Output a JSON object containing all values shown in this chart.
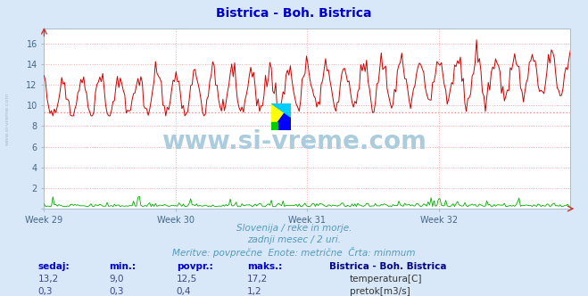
{
  "title": "Bistrica - Boh. Bistrica",
  "title_color": "#0000cc",
  "bg_color": "#d8e8f8",
  "plot_bg_color": "#ffffff",
  "grid_color": "#ffaaaa",
  "temp_color": "#cc0000",
  "flow_color": "#00aa00",
  "temp_min": 9.0,
  "temp_max": 17.2,
  "temp_avg": 12.5,
  "temp_current": 13.2,
  "flow_min": 0.3,
  "flow_max": 1.2,
  "flow_avg": 0.4,
  "flow_current": 0.3,
  "ylim_min": 0,
  "ylim_max": 17.5,
  "yticks": [
    0,
    2,
    4,
    6,
    8,
    10,
    12,
    14,
    16
  ],
  "week_ticks": [
    0,
    168,
    336,
    504
  ],
  "week_labels": [
    "Week 29",
    "Week 30",
    "Week 31",
    "Week 32"
  ],
  "n_points": 360,
  "subtitle1": "Slovenija / reke in morje.",
  "subtitle2": "zadnji mesec / 2 uri.",
  "subtitle3": "Meritve: povprečne  Enote: metrične  Črta: minmum",
  "subtitle_color": "#5599bb",
  "footer_label_color": "#0000cc",
  "footer_value_color": "#444488",
  "footer_bold_color": "#000088",
  "watermark": "www.si-vreme.com",
  "watermark_color": "#aaccdd",
  "avg_line_color": "#ff8888",
  "avg_temp_value": 9.3,
  "arrow_color": "#cc0000",
  "sidebar_text": "www.si-vreme.com",
  "sidebar_color": "#aabbcc"
}
